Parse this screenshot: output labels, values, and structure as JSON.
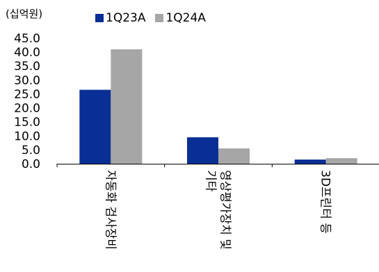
{
  "chart_data": {
    "type": "bar",
    "unit_label": "(십억원)",
    "categories": [
      [
        "자동화 검사장비"
      ],
      [
        "영상평가장치 및",
        "기타"
      ],
      [
        "3D프린터 등"
      ]
    ],
    "series": [
      {
        "name": "1Q23A",
        "color": "#0a2f94",
        "values": [
          26.5,
          9.5,
          1.5
        ]
      },
      {
        "name": "1Q24A",
        "color": "#a6a6a6",
        "values": [
          41.0,
          5.5,
          2.0
        ]
      }
    ],
    "ylim": [
      0,
      45
    ],
    "yticks": [
      "0.0",
      "5.0",
      "10.0",
      "15.0",
      "20.0",
      "25.0",
      "30.0",
      "35.0",
      "40.0",
      "45.0"
    ],
    "legend_position": "top",
    "grid": false
  }
}
